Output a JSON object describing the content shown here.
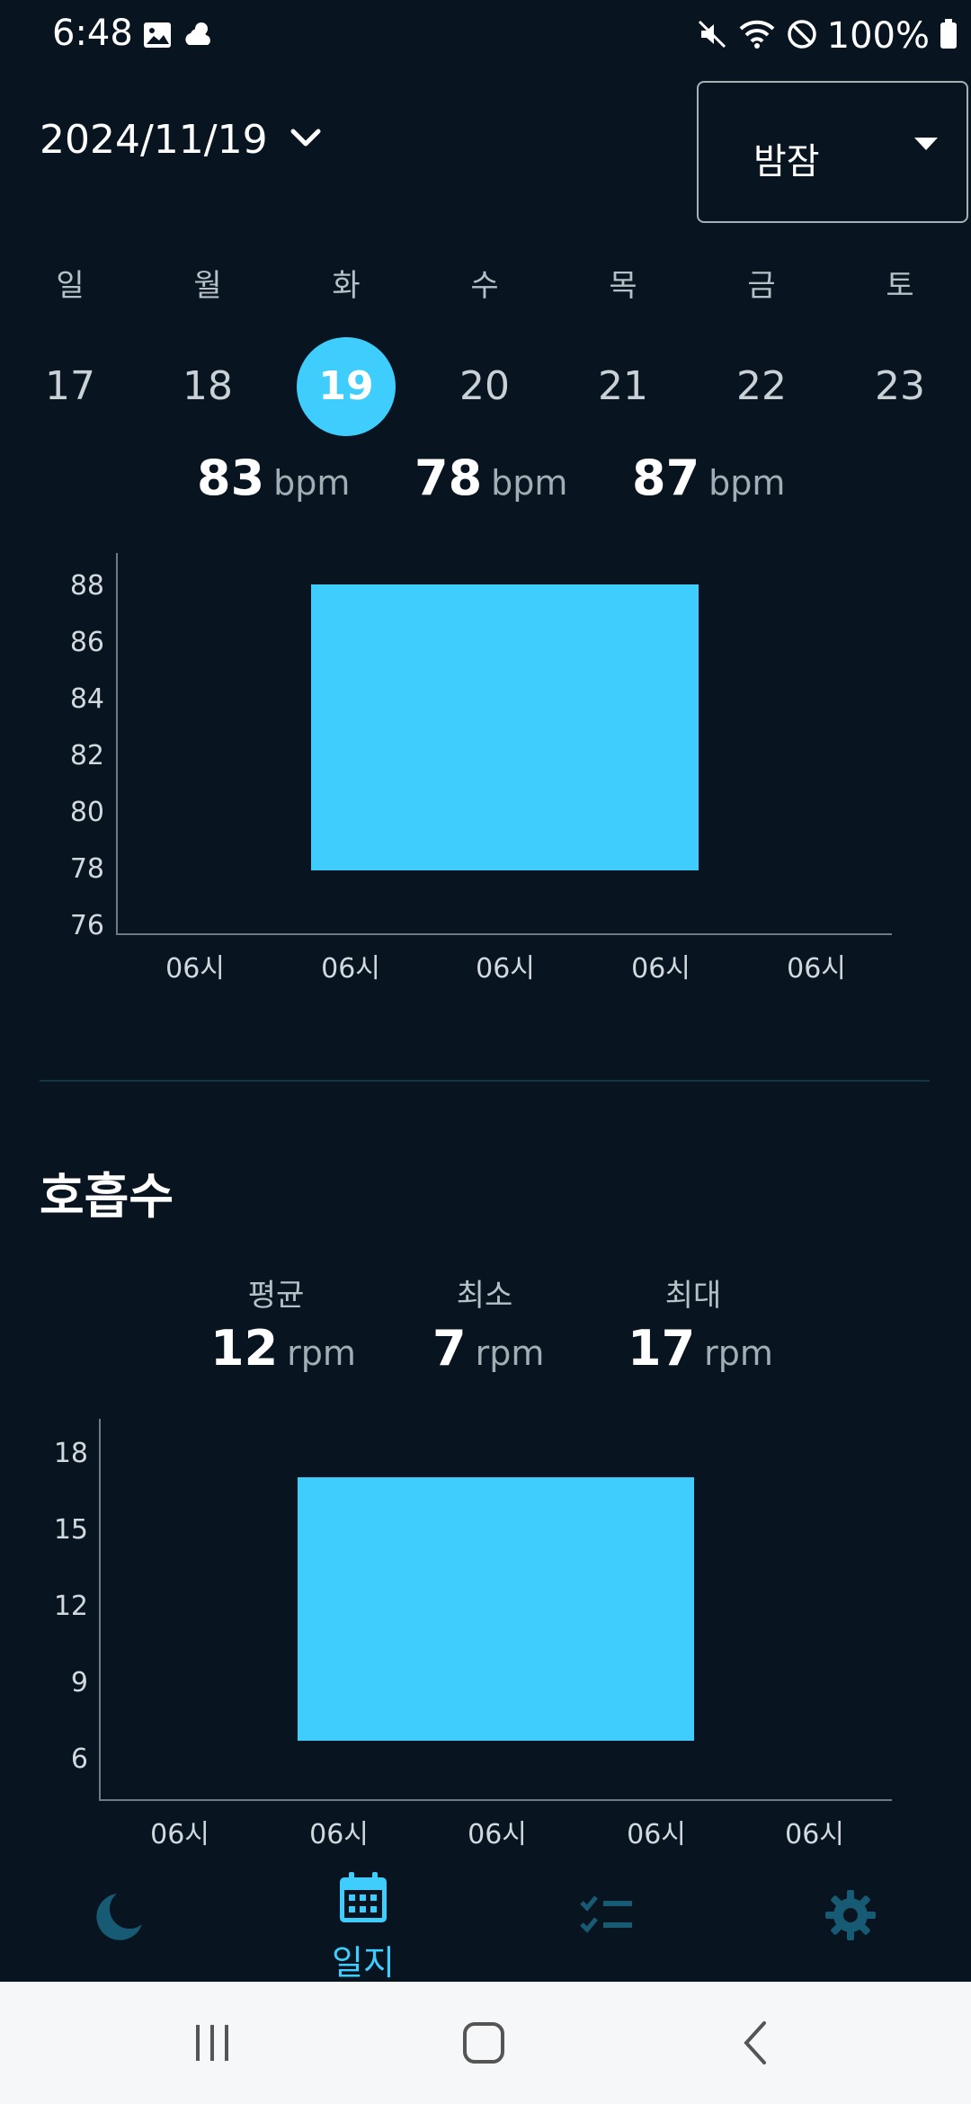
{
  "status_bar": {
    "time": "6:48",
    "battery": "100%"
  },
  "header": {
    "date": "2024/11/19",
    "mode": "밤잠"
  },
  "week": {
    "weekdays": [
      "일",
      "월",
      "화",
      "수",
      "목",
      "금",
      "토"
    ],
    "days": [
      "17",
      "18",
      "19",
      "20",
      "21",
      "22",
      "23"
    ],
    "selected_day": "19"
  },
  "heart_rate": {
    "avg_value": "83",
    "min_value": "78",
    "max_value": "87",
    "unit": "bpm"
  },
  "respiration": {
    "title": "호흡수",
    "avg_label": "평균",
    "min_label": "최소",
    "max_label": "최대",
    "avg_value": "12",
    "min_value": "7",
    "max_value": "17",
    "unit": "rpm"
  },
  "chart_data": [
    {
      "type": "bar",
      "name": "heart_rate",
      "y_ticks": [
        "88",
        "86",
        "84",
        "82",
        "80",
        "78",
        "76"
      ],
      "x_ticks": [
        "06시",
        "06시",
        "06시",
        "06시",
        "06시"
      ],
      "ylim": [
        76,
        88
      ],
      "bars": [
        {
          "low": 78,
          "high": 87
        }
      ],
      "color": "#3ecdfd"
    },
    {
      "type": "bar",
      "name": "respiration",
      "y_ticks": [
        "18",
        "15",
        "12",
        "9",
        "6"
      ],
      "x_ticks": [
        "06시",
        "06시",
        "06시",
        "06시",
        "06시"
      ],
      "ylim": [
        4.8,
        19.2
      ],
      "bars": [
        {
          "low": 7,
          "high": 17
        }
      ],
      "color": "#3ecdfd"
    }
  ],
  "bottom_nav": {
    "journal_label": "일지",
    "items": [
      "sleep-icon",
      "journal-icon",
      "checklist-icon",
      "settings-icon"
    ],
    "active": "journal"
  },
  "colors": {
    "background": "#081520",
    "accent": "#3ecdfd"
  }
}
